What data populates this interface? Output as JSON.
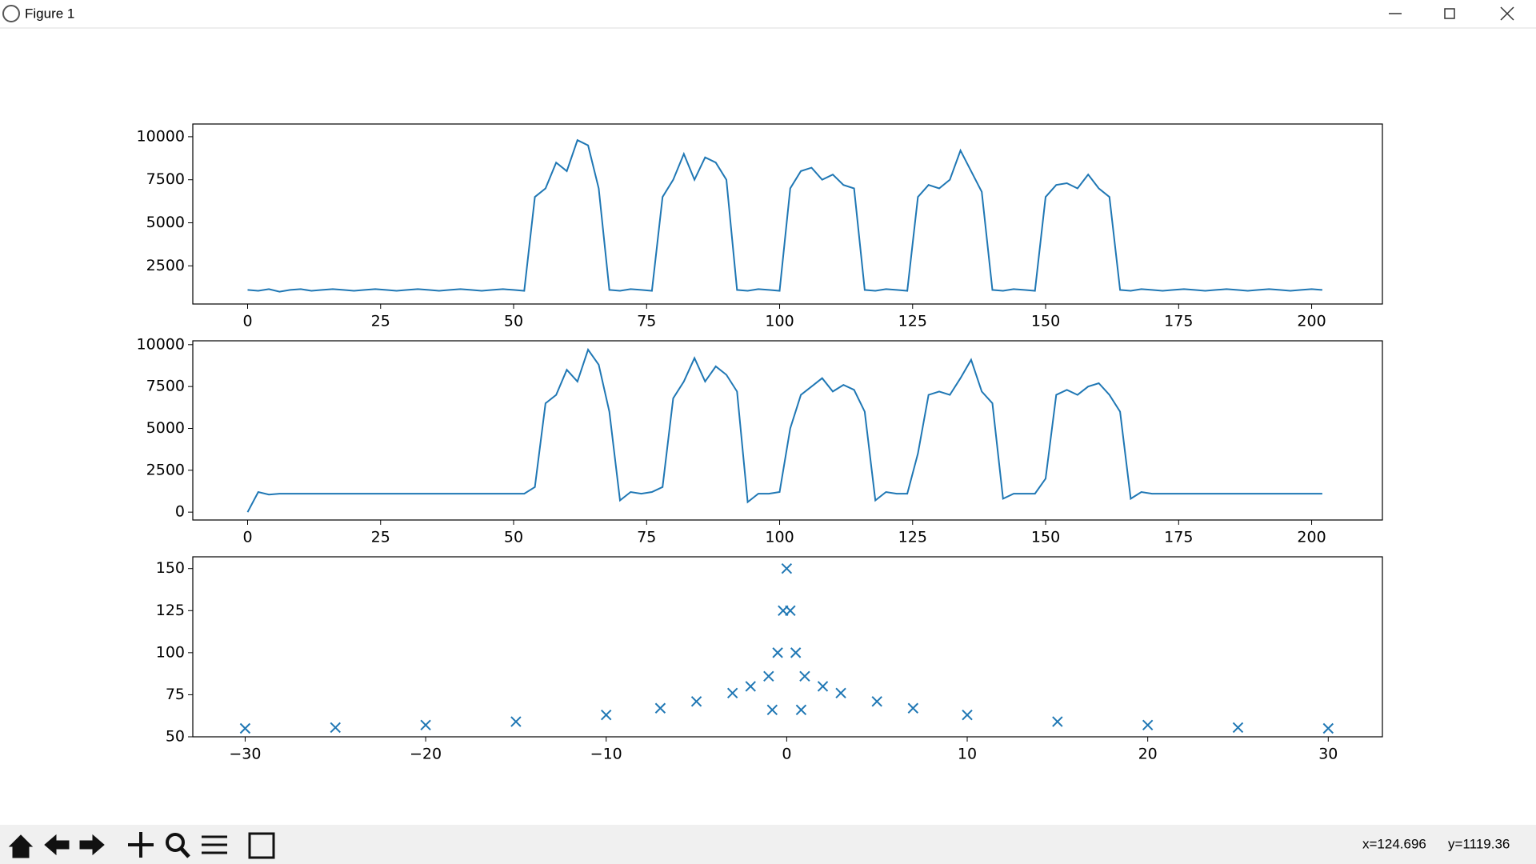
{
  "window": {
    "title": "Figure 1"
  },
  "status": {
    "x": "x=124.696",
    "y": "y=1119.36"
  },
  "chart_data": [
    {
      "type": "line",
      "color": "#1f77b4",
      "x": [
        0,
        2,
        4,
        6,
        8,
        10,
        12,
        14,
        16,
        18,
        20,
        22,
        24,
        26,
        28,
        30,
        32,
        34,
        36,
        38,
        40,
        42,
        44,
        46,
        48,
        50,
        52,
        54,
        56,
        58,
        60,
        62,
        64,
        66,
        68,
        70,
        72,
        74,
        76,
        78,
        80,
        82,
        84,
        86,
        88,
        90,
        92,
        94,
        96,
        98,
        100,
        102,
        104,
        106,
        108,
        110,
        112,
        114,
        116,
        118,
        120,
        122,
        124,
        126,
        128,
        130,
        132,
        134,
        136,
        138,
        140,
        142,
        144,
        146,
        148,
        150,
        152,
        154,
        156,
        158,
        160,
        162,
        164,
        166,
        168,
        170,
        172,
        174,
        176,
        178,
        180,
        182,
        184,
        186,
        188,
        190,
        192,
        194,
        196,
        198,
        200,
        202
      ],
      "values": [
        1100,
        1050,
        1150,
        1000,
        1100,
        1150,
        1050,
        1100,
        1150,
        1100,
        1050,
        1100,
        1150,
        1100,
        1050,
        1100,
        1150,
        1100,
        1050,
        1100,
        1150,
        1100,
        1050,
        1100,
        1150,
        1100,
        1050,
        6500,
        7000,
        8500,
        8000,
        9800,
        9500,
        7000,
        1100,
        1050,
        1150,
        1100,
        1050,
        6500,
        7500,
        9000,
        7500,
        8800,
        8500,
        7500,
        1100,
        1050,
        1150,
        1100,
        1050,
        7000,
        8000,
        8200,
        7500,
        7800,
        7200,
        7000,
        1100,
        1050,
        1150,
        1100,
        1050,
        6500,
        7200,
        7000,
        7500,
        9200,
        8000,
        6800,
        1100,
        1050,
        1150,
        1100,
        1050,
        6500,
        7200,
        7300,
        7000,
        7800,
        7000,
        6500,
        1100,
        1050,
        1150,
        1100,
        1050,
        1100,
        1150,
        1100,
        1050,
        1100,
        1150,
        1100,
        1050,
        1100,
        1150,
        1100,
        1050,
        1100,
        1150,
        1100
      ],
      "xlim": [
        -10.3,
        213.3
      ],
      "ylim": [
        284,
        10739
      ],
      "xticks": [
        0,
        25,
        50,
        75,
        100,
        125,
        150,
        175,
        200
      ],
      "yticks": [
        2500,
        5000,
        7500,
        10000
      ]
    },
    {
      "type": "line",
      "color": "#1f77b4",
      "x": [
        0,
        2,
        4,
        6,
        8,
        10,
        12,
        14,
        16,
        18,
        20,
        22,
        24,
        26,
        28,
        30,
        32,
        34,
        36,
        38,
        40,
        42,
        44,
        46,
        48,
        50,
        52,
        54,
        56,
        58,
        60,
        62,
        64,
        66,
        68,
        70,
        72,
        74,
        76,
        78,
        80,
        82,
        84,
        86,
        88,
        90,
        92,
        94,
        96,
        98,
        100,
        102,
        104,
        106,
        108,
        110,
        112,
        114,
        116,
        118,
        120,
        122,
        124,
        126,
        128,
        130,
        132,
        134,
        136,
        138,
        140,
        142,
        144,
        146,
        148,
        150,
        152,
        154,
        156,
        158,
        160,
        162,
        164,
        166,
        168,
        170,
        172,
        174,
        176,
        178,
        180,
        182,
        184,
        186,
        188,
        190,
        192,
        194,
        196,
        198,
        200,
        202
      ],
      "values": [
        0,
        1200,
        1050,
        1100,
        1100,
        1100,
        1100,
        1100,
        1100,
        1100,
        1100,
        1100,
        1100,
        1100,
        1100,
        1100,
        1100,
        1100,
        1100,
        1100,
        1100,
        1100,
        1100,
        1100,
        1100,
        1100,
        1100,
        1500,
        6500,
        7000,
        8500,
        7800,
        9700,
        8800,
        6000,
        700,
        1200,
        1100,
        1200,
        1500,
        6800,
        7800,
        9200,
        7800,
        8700,
        8200,
        7200,
        600,
        1100,
        1100,
        1200,
        5000,
        7000,
        7500,
        8000,
        7200,
        7600,
        7300,
        6000,
        700,
        1200,
        1100,
        1100,
        3500,
        7000,
        7200,
        7000,
        8000,
        9100,
        7200,
        6500,
        800,
        1100,
        1100,
        1100,
        2000,
        7000,
        7300,
        7000,
        7500,
        7700,
        7000,
        6000,
        800,
        1200,
        1100,
        1100,
        1100,
        1100,
        1100,
        1100,
        1100,
        1100,
        1100,
        1100,
        1100,
        1100,
        1100,
        1100,
        1100,
        1100,
        1100
      ],
      "xlim": [
        -10.3,
        213.3
      ],
      "ylim": [
        -470,
        10230
      ],
      "xticks": [
        0,
        25,
        50,
        75,
        100,
        125,
        150,
        175,
        200
      ],
      "yticks": [
        0,
        2500,
        5000,
        7500,
        10000
      ]
    },
    {
      "type": "scatter",
      "color": "#1f77b4",
      "x": [
        -30,
        -25,
        -20,
        -15,
        -10,
        -7,
        -5,
        -3,
        -2,
        -1,
        -0.8,
        -0.5,
        -0.2,
        0,
        0.2,
        0.5,
        0.8,
        1,
        2,
        3,
        5,
        7,
        10,
        15,
        20,
        25,
        30
      ],
      "values": [
        55,
        55.5,
        57,
        59,
        63,
        67,
        71,
        76,
        80,
        86,
        66,
        100,
        125,
        150,
        125,
        100,
        66,
        86,
        80,
        76,
        71,
        67,
        63,
        59,
        57,
        55.5,
        55
      ],
      "xlim": [
        -32.9,
        33.0
      ],
      "ylim": [
        50,
        157
      ],
      "xticks": [
        {
          "value": -30,
          "label": "−30"
        },
        {
          "value": -20,
          "label": "−20"
        },
        {
          "value": -10,
          "label": "−10"
        },
        0,
        10,
        20,
        30
      ],
      "yticks": [
        50,
        75,
        100,
        125,
        150
      ]
    }
  ]
}
